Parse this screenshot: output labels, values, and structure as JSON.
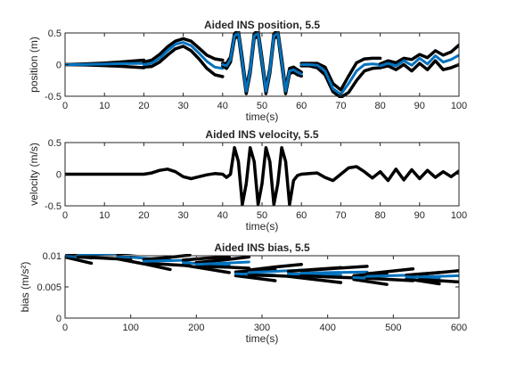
{
  "chart_data": [
    {
      "type": "line",
      "title": "Aided INS position, 5.5",
      "xlabel": "time(s)",
      "ylabel": "position (m)",
      "xlim": [
        0,
        100
      ],
      "ylim": [
        -0.5,
        0.5
      ],
      "xticks": [
        "0",
        "10",
        "20",
        "30",
        "40",
        "50",
        "60",
        "70",
        "80",
        "90",
        "100"
      ],
      "yticks": [
        "-0.5",
        "0",
        "0.5"
      ],
      "grid": false,
      "colors": {
        "estimate": "#0072BD",
        "bounds": "#000000"
      },
      "segments": [
        {
          "x": [
            0,
            5,
            10,
            15,
            20
          ],
          "estimate": [
            0,
            0.002,
            0.008,
            0.015,
            0.02
          ],
          "upper": [
            0,
            0.01,
            0.025,
            0.045,
            0.07
          ],
          "lower": [
            0,
            -0.005,
            -0.015,
            -0.03,
            -0.05
          ]
        },
        {
          "x": [
            20,
            22,
            24,
            26,
            28,
            30,
            32,
            34,
            36,
            38,
            40
          ],
          "estimate": [
            0.0,
            0.02,
            0.1,
            0.22,
            0.32,
            0.35,
            0.3,
            0.18,
            0.05,
            -0.04,
            -0.06
          ],
          "upper": [
            0.04,
            0.07,
            0.16,
            0.28,
            0.37,
            0.41,
            0.37,
            0.26,
            0.15,
            0.09,
            0.07
          ],
          "lower": [
            -0.04,
            -0.03,
            0.04,
            0.15,
            0.25,
            0.29,
            0.22,
            0.09,
            -0.06,
            -0.16,
            -0.19
          ]
        },
        {
          "x": [
            40,
            41,
            42,
            43,
            44,
            45,
            46,
            47,
            48,
            49,
            50,
            51,
            52,
            53,
            54,
            55,
            56,
            57,
            58,
            59,
            60
          ],
          "estimate": [
            0,
            -0.02,
            0.08,
            0.45,
            0.5,
            0.05,
            -0.42,
            -0.1,
            0.45,
            0.5,
            0.05,
            -0.42,
            -0.1,
            0.45,
            0.5,
            0.05,
            -0.42,
            -0.1,
            -0.08,
            -0.12,
            -0.15
          ],
          "upper": [
            0.02,
            0.02,
            0.12,
            0.49,
            0.54,
            0.1,
            -0.38,
            -0.06,
            0.49,
            0.54,
            0.1,
            -0.38,
            -0.06,
            0.49,
            0.54,
            0.1,
            -0.38,
            -0.06,
            -0.04,
            -0.08,
            -0.12
          ],
          "lower": [
            -0.02,
            -0.06,
            0.04,
            0.41,
            0.46,
            0.0,
            -0.46,
            -0.14,
            0.41,
            0.46,
            0.0,
            -0.46,
            -0.14,
            0.41,
            0.46,
            0.0,
            -0.46,
            -0.14,
            -0.12,
            -0.16,
            -0.18
          ]
        },
        {
          "x": [
            60,
            62,
            64,
            66,
            68,
            70,
            72,
            74,
            76,
            78,
            80
          ],
          "estimate": [
            0,
            0,
            -0.01,
            -0.1,
            -0.38,
            -0.47,
            -0.3,
            -0.1,
            0.0,
            0.01,
            0.0
          ],
          "upper": [
            0.02,
            0.02,
            0.02,
            -0.04,
            -0.3,
            -0.4,
            -0.18,
            0.03,
            0.09,
            0.1,
            0.1
          ],
          "lower": [
            -0.02,
            -0.02,
            -0.05,
            -0.16,
            -0.43,
            -0.52,
            -0.44,
            -0.25,
            -0.1,
            -0.06,
            -0.05
          ]
        },
        {
          "x": [
            80,
            82,
            84,
            86,
            88,
            90,
            92,
            94,
            96,
            98,
            100
          ],
          "estimate": [
            -0.02,
            0.02,
            -0.02,
            0.06,
            -0.01,
            0.1,
            0.01,
            0.14,
            0.04,
            0.08,
            0.15
          ],
          "upper": [
            0.01,
            0.06,
            0.03,
            0.1,
            0.08,
            0.16,
            0.11,
            0.22,
            0.15,
            0.2,
            0.31
          ],
          "lower": [
            -0.05,
            -0.02,
            -0.08,
            0.0,
            -0.1,
            0.02,
            -0.08,
            0.06,
            -0.08,
            -0.05,
            0.0
          ]
        }
      ]
    },
    {
      "type": "line",
      "title": "Aided INS velocity, 5.5",
      "xlabel": "time(s)",
      "ylabel": "velocity (m/s)",
      "xlim": [
        0,
        100
      ],
      "ylim": [
        -0.5,
        0.5
      ],
      "xticks": [
        "0",
        "10",
        "20",
        "30",
        "40",
        "50",
        "60",
        "70",
        "80",
        "90",
        "100"
      ],
      "yticks": [
        "-0.5",
        "0",
        "0.5"
      ],
      "grid": false,
      "colors": {
        "estimate": "#000000"
      },
      "series": [
        {
          "x": [
            0,
            10,
            20,
            22,
            24,
            26,
            28,
            30,
            32,
            34,
            36,
            38,
            40,
            41,
            42,
            43,
            44,
            45,
            46,
            47,
            48,
            49,
            50,
            51,
            52,
            53,
            54,
            55,
            56,
            57,
            58,
            59,
            60,
            62,
            64,
            66,
            68,
            70,
            72,
            74,
            76,
            78,
            80,
            82,
            84,
            86,
            88,
            90,
            92,
            94,
            96,
            98,
            100
          ],
          "values": [
            0,
            0,
            0,
            0.02,
            0.06,
            0.08,
            0.04,
            -0.04,
            -0.07,
            -0.04,
            -0.01,
            0.01,
            0,
            -0.05,
            0.0,
            0.42,
            0.2,
            -0.48,
            -0.15,
            0.42,
            0.2,
            -0.48,
            -0.15,
            0.42,
            0.2,
            -0.48,
            -0.15,
            0.42,
            0.2,
            -0.48,
            -0.1,
            -0.02,
            0,
            0.01,
            0.02,
            -0.05,
            -0.1,
            0.0,
            0.1,
            0.12,
            0.04,
            -0.06,
            0.04,
            -0.1,
            0.08,
            -0.09,
            0.07,
            -0.07,
            0.06,
            -0.05,
            0.04,
            -0.04,
            0.05
          ]
        }
      ]
    },
    {
      "type": "line",
      "title": "Aided INS bias, 5.5",
      "xlabel": "time(s)",
      "ylabel": "bias (m/s²)",
      "xlim": [
        0,
        600
      ],
      "ylim": [
        0,
        0.01
      ],
      "xticks": [
        "0",
        "100",
        "200",
        "300",
        "400",
        "500",
        "600"
      ],
      "yticks": [
        "0",
        "0.005",
        "0.01"
      ],
      "grid": false,
      "colors": {
        "estimate": "#0072BD",
        "bounds": "#000000"
      },
      "segments": [
        {
          "x": [
            0,
            20,
            40
          ],
          "estimate": [
            0.01,
            0.0098,
            0.0096
          ],
          "upper": [
            0.0102,
            0.0104,
            0.0107
          ],
          "lower": [
            0.0098,
            0.0093,
            0.0088
          ]
        },
        {
          "x": [
            20,
            60,
            100
          ],
          "estimate": [
            0.0102,
            0.0103,
            0.0104
          ],
          "upper": [
            0.0105,
            0.011,
            0.0114
          ],
          "lower": [
            0.0098,
            0.0096,
            0.0094
          ]
        },
        {
          "x": [
            80,
            120,
            160
          ],
          "estimate": [
            0.0099,
            0.0096,
            0.0093
          ],
          "upper": [
            0.0103,
            0.0106,
            0.0109
          ],
          "lower": [
            0.0095,
            0.0087,
            0.0078
          ]
        },
        {
          "x": [
            120,
            155,
            190
          ],
          "estimate": [
            0.0091,
            0.0092,
            0.0093
          ],
          "upper": [
            0.0094,
            0.0097,
            0.0101
          ],
          "lower": [
            0.0088,
            0.0086,
            0.0084
          ]
        },
        {
          "x": [
            180,
            215,
            250
          ],
          "estimate": [
            0.0089,
            0.0087,
            0.0085
          ],
          "upper": [
            0.0093,
            0.0096,
            0.0098
          ],
          "lower": [
            0.0085,
            0.0079,
            0.0073
          ]
        },
        {
          "x": [
            200,
            240,
            280
          ],
          "estimate": [
            0.0086,
            0.0088,
            0.009
          ],
          "upper": [
            0.0089,
            0.0093,
            0.0098
          ],
          "lower": [
            0.0083,
            0.0082,
            0.008
          ]
        },
        {
          "x": [
            260,
            290,
            320
          ],
          "estimate": [
            0.0071,
            0.007,
            0.0069
          ],
          "upper": [
            0.0074,
            0.0076,
            0.0078
          ],
          "lower": [
            0.0068,
            0.0064,
            0.006
          ]
        },
        {
          "x": [
            280,
            320,
            360
          ],
          "estimate": [
            0.0073,
            0.0075,
            0.0077
          ],
          "upper": [
            0.0077,
            0.0082,
            0.0086
          ],
          "lower": [
            0.0069,
            0.0068,
            0.0066
          ]
        },
        {
          "x": [
            340,
            380,
            420
          ],
          "estimate": [
            0.0071,
            0.007,
            0.0069
          ],
          "upper": [
            0.0075,
            0.0078,
            0.0081
          ],
          "lower": [
            0.0067,
            0.0062,
            0.0057
          ]
        },
        {
          "x": [
            360,
            400,
            460
          ],
          "estimate": [
            0.0072,
            0.0073,
            0.0074
          ],
          "upper": [
            0.0076,
            0.0079,
            0.0083
          ],
          "lower": [
            0.0068,
            0.0066,
            0.0064
          ]
        },
        {
          "x": [
            440,
            465,
            490
          ],
          "estimate": [
            0.0065,
            0.0064,
            0.0063
          ],
          "upper": [
            0.0068,
            0.007,
            0.0072
          ],
          "lower": [
            0.0062,
            0.0058,
            0.0054
          ]
        },
        {
          "x": [
            460,
            495,
            530
          ],
          "estimate": [
            0.0067,
            0.0068,
            0.0069
          ],
          "upper": [
            0.0071,
            0.0075,
            0.0079
          ],
          "lower": [
            0.0064,
            0.0062,
            0.006
          ]
        },
        {
          "x": [
            520,
            545,
            570
          ],
          "estimate": [
            0.0066,
            0.0065,
            0.0064
          ],
          "upper": [
            0.0069,
            0.0071,
            0.0073
          ],
          "lower": [
            0.0063,
            0.0059,
            0.0055
          ]
        },
        {
          "x": [
            540,
            570,
            600
          ],
          "estimate": [
            0.0066,
            0.0067,
            0.0068
          ],
          "upper": [
            0.007,
            0.0073,
            0.0076
          ],
          "lower": [
            0.0062,
            0.006,
            0.0058
          ]
        }
      ]
    }
  ]
}
